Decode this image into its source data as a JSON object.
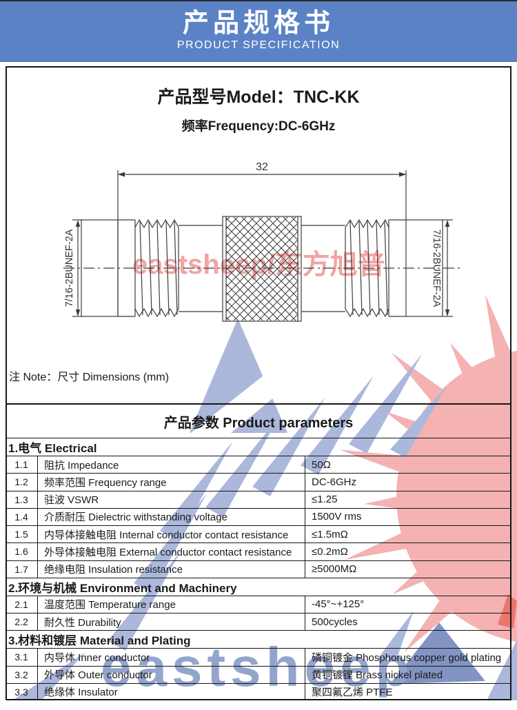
{
  "banner": {
    "title_zh": "产品规格书",
    "title_en": "PRODUCT SPECIFICATION",
    "bg": "#5b82c5"
  },
  "product": {
    "model_line": "产品型号Model：TNC-KK",
    "frequency_line": "频率Frequency:DC-6GHz"
  },
  "drawing": {
    "dimension": "32",
    "thread_left": "7/16-2BUNEF-2A",
    "thread_right": "7/16-2BUNEF-2A",
    "watermark": "eastsheep/东方旭普"
  },
  "note": "注 Note：尺寸 Dimensions (mm)",
  "table": {
    "title": "产品参数 Product parameters",
    "sections": [
      {
        "heading": "1.电气 Electrical",
        "rows": [
          {
            "no": "1.1",
            "name": "阻抗 Impedance",
            "value": "50Ω"
          },
          {
            "no": "1.2",
            "name": "频率范围 Frequency range",
            "value": "DC-6GHz"
          },
          {
            "no": "1.3",
            "name": "驻波 VSWR",
            "value": "≤1.25"
          },
          {
            "no": "1.4",
            "name": "介质耐压 Dielectric withstanding voltage",
            "value": "1500V rms"
          },
          {
            "no": "1.5",
            "name": "内导体接触电阻 Internal conductor contact resistance",
            "value": "≤1.5mΩ"
          },
          {
            "no": "1.6",
            "name": "外导体接触电阻 External conductor contact resistance",
            "value": "≤0.2mΩ"
          },
          {
            "no": "1.7",
            "name": "绝缘电阻 Insulation resistance",
            "value": "≥5000MΩ"
          }
        ]
      },
      {
        "heading": "2.环境与机械 Environment and Machinery",
        "rows": [
          {
            "no": "2.1",
            "name": "温度范围 Temperature range",
            "value": "-45°~+125°"
          },
          {
            "no": "2.2",
            "name": "耐久性 Durability",
            "value": "500cycles"
          }
        ]
      },
      {
        "heading": "3.材料和镀层 Material and Plating",
        "rows": [
          {
            "no": "3.1",
            "name": "内导体 Inner conductor",
            "value": "磷铜镀金 Phosphorus copper gold plating"
          },
          {
            "no": "3.2",
            "name": "外导体 Outer conductor",
            "value": "黄铜镀镍 Brass nickel plated"
          },
          {
            "no": "3.3",
            "name": "绝缘体 Insulator",
            "value": "聚四氟乙烯 PTFE"
          }
        ]
      }
    ]
  },
  "watermark": {
    "brand_text": "eastsheep",
    "colors": {
      "pink": "#f4b2b2",
      "blue_light": "#abb8dc",
      "blue_dark": "#8294c4",
      "red_accent": "#ea766e",
      "text_blue": "#93a5cd",
      "drawing_red": "#f09392"
    }
  }
}
